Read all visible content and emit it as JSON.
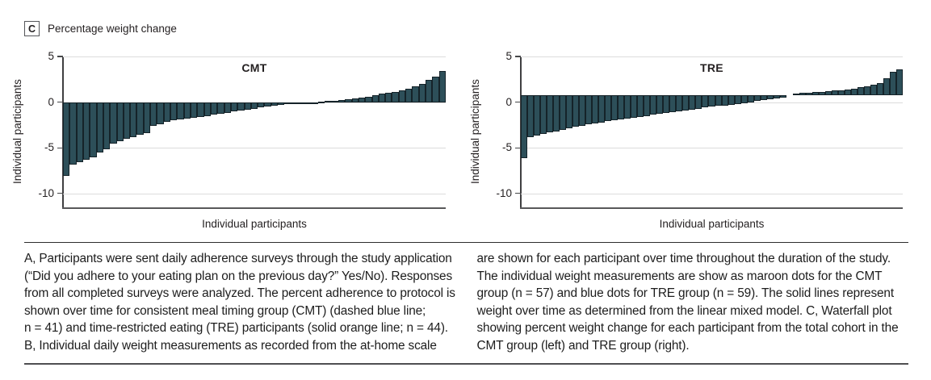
{
  "panel": {
    "label": "C",
    "title": "Percentage weight change"
  },
  "chart_data": [
    {
      "type": "bar",
      "title": "CMT",
      "xlabel": "Individual participants",
      "ylabel": "Individual participants",
      "yticks": [
        5,
        0,
        -5,
        -10
      ],
      "ylim": [
        -11.5,
        5
      ],
      "baseline": 0,
      "n": 57,
      "bar_color": "#2d4f59",
      "bar_edge_color": "#152329",
      "grid": true,
      "values": [
        -8.1,
        -6.8,
        -6.6,
        -6.3,
        -6.0,
        -5.5,
        -5.2,
        -4.5,
        -4.3,
        -4.0,
        -3.8,
        -3.6,
        -3.4,
        -2.6,
        -2.4,
        -2.2,
        -2.0,
        -1.9,
        -1.8,
        -1.7,
        -1.6,
        -1.5,
        -1.4,
        -1.3,
        -1.2,
        -1.0,
        -0.9,
        -0.8,
        -0.7,
        -0.6,
        -0.5,
        -0.4,
        -0.3,
        -0.25,
        -0.2,
        -0.15,
        -0.1,
        -0.05,
        0.05,
        0.1,
        0.15,
        0.2,
        0.3,
        0.4,
        0.5,
        0.6,
        0.8,
        0.9,
        1.0,
        1.1,
        1.3,
        1.5,
        1.7,
        2.0,
        2.4,
        2.8,
        3.4
      ]
    },
    {
      "type": "bar",
      "title": "TRE",
      "xlabel": "Individual participants",
      "ylabel": "Individual participants",
      "yticks": [
        5,
        0,
        -5,
        -10
      ],
      "ylim": [
        -11.5,
        5
      ],
      "baseline": 0.75,
      "n": 59,
      "bar_color": "#2d4f59",
      "bar_edge_color": "#152329",
      "grid": true,
      "values": [
        -6.1,
        -3.8,
        -3.7,
        -3.5,
        -3.3,
        -3.2,
        -3.0,
        -2.9,
        -2.7,
        -2.6,
        -2.4,
        -2.3,
        -2.2,
        -2.1,
        -2.0,
        -1.9,
        -1.8,
        -1.7,
        -1.6,
        -1.5,
        -1.4,
        -1.3,
        -1.2,
        -1.1,
        -1.0,
        -0.9,
        -0.8,
        -0.7,
        -0.6,
        -0.5,
        -0.4,
        -0.35,
        -0.3,
        -0.2,
        -0.1,
        0.0,
        0.1,
        0.2,
        0.3,
        0.4,
        0.5,
        0.75,
        0.9,
        1.0,
        1.05,
        1.1,
        1.15,
        1.2,
        1.25,
        1.3,
        1.4,
        1.5,
        1.6,
        1.7,
        1.9,
        2.1,
        2.6,
        3.3,
        3.6
      ]
    }
  ],
  "caption": {
    "left": "A, Participants were sent daily adherence surveys through the study application (“Did you adhere to your eating plan on the previous day?” Yes/No). Responses from all completed surveys were analyzed. The percent adherence to protocol is shown over time for consistent meal timing group (CMT) (dashed blue line; n = 41) and time-restricted eating (TRE) participants (solid orange line; n = 44). B, Individual daily weight measurements as recorded from the at-home scale",
    "right": "are shown for each participant over time throughout the duration of the study. The individual weight measurements are show as maroon dots for the CMT group (n = 57) and blue dots for TRE group (n = 59). The solid lines represent weight over time as determined from the linear mixed model. C, Waterfall plot showing percent weight change for each participant from the total cohort in the CMT group (left) and TRE group (right)."
  }
}
